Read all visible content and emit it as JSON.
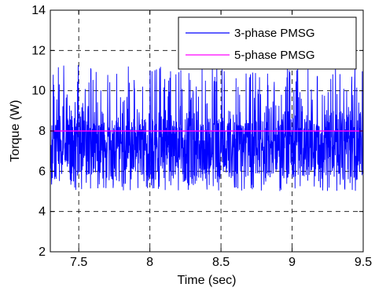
{
  "chart_data": {
    "type": "line",
    "xlabel": "Time (sec)",
    "ylabel": "Torque (W)",
    "xlim": [
      7.3,
      9.5
    ],
    "ylim": [
      2,
      14
    ],
    "xticks": [
      7.5,
      8,
      8.5,
      9,
      9.5
    ],
    "xtick_labels": [
      "7.5",
      "8",
      "8.5",
      "9",
      "9.5"
    ],
    "yticks": [
      2,
      4,
      6,
      8,
      10,
      12,
      14
    ],
    "ytick_labels": [
      "2",
      "4",
      "6",
      "8",
      "10",
      "12",
      "14"
    ],
    "grid": true,
    "legend_position": "top-right",
    "series": [
      {
        "name": "3-phase PMSG",
        "color": "#0000ff",
        "mean": 7.3,
        "min": 5.0,
        "max": 11.3
      },
      {
        "name": "5-phase PMSG",
        "color": "#ff00ff",
        "constant": 8.0
      }
    ]
  }
}
